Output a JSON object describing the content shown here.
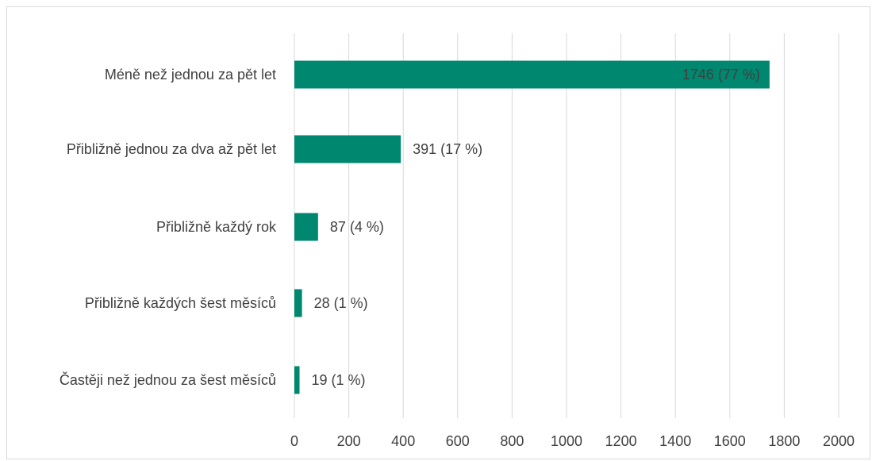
{
  "chart_data": {
    "type": "bar",
    "orientation": "horizontal",
    "categories": [
      "Méně než jednou za pět let",
      "Přibližně jednou za dva až pět let",
      "Přibližně každý rok",
      "Přibližně každých šest měsíců",
      "Častěji než jednou za šest měsíců"
    ],
    "values": [
      1746,
      391,
      87,
      28,
      19
    ],
    "data_labels": [
      "1746 (77 %)",
      "391 (17 %)",
      "87 (4 %)",
      "28 (1 %)",
      "19 (1 %)"
    ],
    "xlim": [
      0,
      2000
    ],
    "xticks": [
      0,
      200,
      400,
      600,
      800,
      1000,
      1200,
      1400,
      1600,
      1800,
      2000
    ],
    "grid": "vertical",
    "legend": "none",
    "bar_color": "#00876f",
    "grid_color": "#d9d9d9",
    "label_color": "#404040",
    "inside_label_color": "#ffffff"
  }
}
